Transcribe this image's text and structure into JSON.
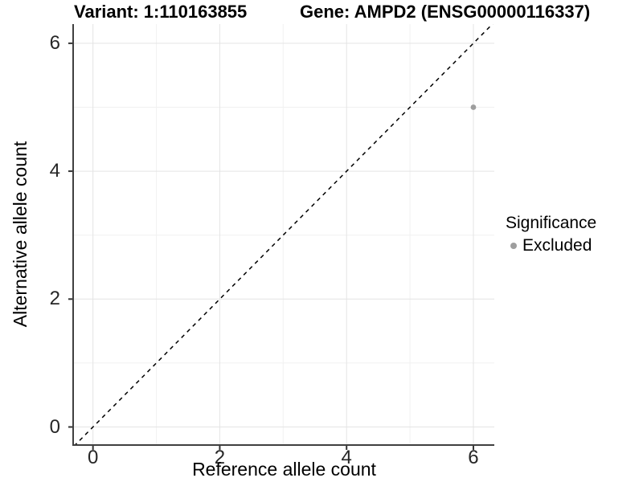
{
  "titles": {
    "variant": "Variant: 1:110163855",
    "gene": "Gene: AMPD2 (ENSG00000116337)"
  },
  "chart_data": {
    "type": "scatter",
    "title_left": "Variant: 1:110163855",
    "title_right": "Gene: AMPD2 (ENSG00000116337)",
    "xlabel": "Reference allele count",
    "ylabel": "Alternative allele count",
    "xlim": [
      -0.3,
      6.33
    ],
    "ylim": [
      -0.27,
      6.3
    ],
    "xticks": [
      0,
      2,
      4,
      6
    ],
    "yticks": [
      0,
      2,
      4,
      6
    ],
    "xticks_minor": [
      1,
      3,
      5
    ],
    "yticks_minor": [
      1,
      3,
      5
    ],
    "grid": "on",
    "identity_line": {
      "style": "dashed",
      "from": [
        -0.3,
        -0.3
      ],
      "to": [
        6.33,
        6.33
      ],
      "color": "#000000"
    },
    "points": [
      {
        "x": 6,
        "y": 5,
        "significance": "Excluded",
        "color": "#9e9e9e"
      }
    ],
    "legend": {
      "position": "right",
      "title": "Significance",
      "entries": [
        {
          "label": "Excluded",
          "color": "#9e9e9e"
        }
      ]
    },
    "colors": {
      "axis_line": "#404040",
      "grid_major": "#e4e4e4",
      "grid_minor": "#f1f1f1",
      "tick_mark": "#333333"
    }
  }
}
